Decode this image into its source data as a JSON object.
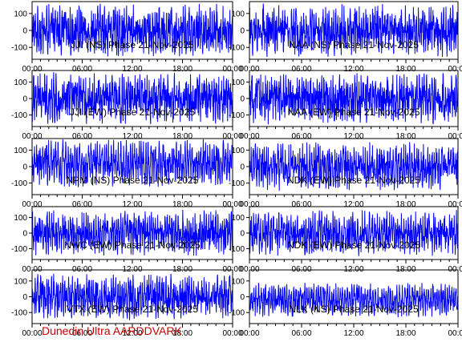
{
  "footer": "Dunedin Ultra AARDDVARK",
  "colors": {
    "trace": "#0000ff",
    "axes": "#000000",
    "footer": "#cc0000"
  },
  "chart_data": {
    "type": "line",
    "x_ticks": [
      "00:00",
      "06:00",
      "12:00",
      "18:00",
      "00:00"
    ],
    "y_ticks": [
      100,
      0,
      -100
    ],
    "ylim": [
      -170,
      170
    ],
    "grid": false,
    "panels": [
      {
        "label": "JJI (NS) Phase 21-Nov-2025",
        "column": "left",
        "row": 1,
        "mean": 0,
        "amplitude": 160,
        "noise": 0.65
      },
      {
        "label": "NAA (NS) Phase 21-Nov-2025",
        "column": "right",
        "row": 1,
        "mean": 0,
        "amplitude": 160,
        "noise": 0.65
      },
      {
        "label": "JJI (EW) Phase 21-Nov-2025",
        "column": "left",
        "row": 2,
        "mean": 0,
        "amplitude": 160,
        "noise": 0.65
      },
      {
        "label": "NAA (EW) Phase 21-Nov-2025",
        "column": "right",
        "row": 2,
        "mean": 0,
        "amplitude": 160,
        "noise": 0.65
      },
      {
        "label": "NPM (NS) Phase 21-Nov-2025",
        "column": "left",
        "row": 3,
        "mean": 20,
        "amplitude": 150,
        "noise": 0.55
      },
      {
        "label": "NDK (EW) Phase 21-Nov-2025",
        "column": "right",
        "row": 3,
        "mean": 0,
        "amplitude": 150,
        "noise": 0.6
      },
      {
        "label": "NWC (EW) Phase 21-Nov-2025",
        "column": "left",
        "row": 4,
        "mean": 0,
        "amplitude": 150,
        "noise": 0.6
      },
      {
        "label": "NDK (EW) Phase 21-Nov-2025",
        "column": "right",
        "row": 4,
        "mean": 0,
        "amplitude": 150,
        "noise": 0.6
      },
      {
        "label": "VTX (EW) Phase 21-Nov-2025",
        "column": "left",
        "row": 5,
        "mean": 0,
        "amplitude": 150,
        "noise": 0.6
      },
      {
        "label": "NLK (NS) Phase 21-Nov-2025",
        "column": "right",
        "row": 5,
        "mean": -20,
        "amplitude": 110,
        "noise": 0.5
      }
    ]
  }
}
